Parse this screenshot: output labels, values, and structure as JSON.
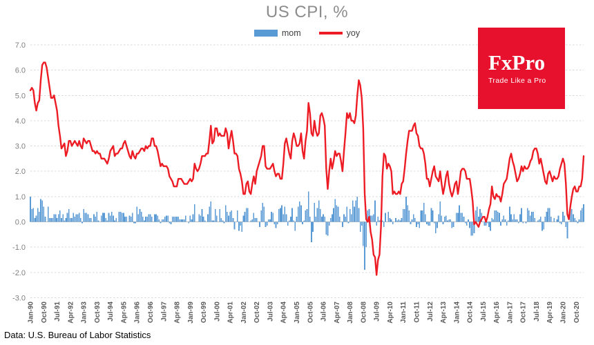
{
  "title": "US CPI, %",
  "legend": {
    "mom_label": "mom",
    "yoy_label": "yoy"
  },
  "logo": {
    "name": "FxPro",
    "tagline": "Trade Like a Pro",
    "bg_color": "#e8112d",
    "text_color": "#ffffff"
  },
  "footer": "Data: U.S. Bureau of Labor Statistics",
  "colors": {
    "mom_bar": "#5b9bd5",
    "yoy_line": "#ed1c24",
    "gridline": "#d9d9d9",
    "zero_axis": "#c0c0c0",
    "title_text": "#8c8c8c",
    "y_tick_text": "#7f7f7f",
    "x_tick_text": "#595959"
  },
  "chart_data": {
    "type": "bar+line combo",
    "title": "US CPI, %",
    "x_start": "Jan-1990",
    "x_end": "Mar-2021",
    "x_tick_every_months": 9,
    "x_tick_labels": [
      "Jan-90",
      "Oct-90",
      "Jul-91",
      "Apr-92",
      "Jan-93",
      "Oct-93",
      "Jul-94",
      "Apr-95",
      "Jan-96",
      "Oct-96",
      "Jul-97",
      "Apr-98",
      "Jan-99",
      "Oct-99",
      "Jul-00",
      "Apr-01",
      "Jan-02",
      "Oct-02",
      "Jul-03",
      "Apr-04",
      "Jan-05",
      "Oct-05",
      "Jul-06",
      "Apr-07",
      "Jan-08",
      "Oct-08",
      "Jul-09",
      "Apr-10",
      "Jan-11",
      "Oct-11",
      "Jul-12",
      "Apr-13",
      "Jan-14",
      "Oct-14",
      "Jul-15",
      "Apr-16",
      "Jan-17",
      "Oct-17",
      "Jul-18",
      "Apr-19",
      "Jan-20",
      "Oct-20"
    ],
    "y_tick_labels": [
      "7.0",
      "6.0",
      "5.0",
      "4.0",
      "3.0",
      "2.0",
      "1.0",
      "0.0",
      "-1.0",
      "-2.0",
      "-3.0"
    ],
    "ylim": [
      -3.0,
      7.0
    ],
    "grid": true,
    "legend_position": "top",
    "series": [
      {
        "name": "mom",
        "type": "bar",
        "values": [
          1.0,
          0.5,
          0.55,
          0.15,
          0.25,
          0.55,
          0.4,
          0.9,
          0.85,
          0.6,
          0.2,
          0.0,
          0.6,
          0.15,
          0.15,
          0.15,
          0.3,
          0.3,
          0.15,
          0.3,
          0.45,
          0.15,
          0.3,
          0.05,
          0.15,
          0.35,
          0.5,
          0.15,
          0.15,
          0.35,
          0.2,
          0.3,
          0.3,
          0.35,
          0.15,
          -0.05,
          0.5,
          0.35,
          0.35,
          0.3,
          0.15,
          0.15,
          0.0,
          0.3,
          0.2,
          0.4,
          0.05,
          0.0,
          0.25,
          0.35,
          0.35,
          0.15,
          0.05,
          0.35,
          0.25,
          0.4,
          0.25,
          0.05,
          0.15,
          0.0,
          0.4,
          0.4,
          0.35,
          0.35,
          0.2,
          0.2,
          0.0,
          0.25,
          0.2,
          0.35,
          -0.05,
          -0.05,
          0.6,
          0.3,
          0.5,
          0.4,
          0.2,
          0.05,
          0.2,
          0.2,
          0.3,
          0.3,
          0.2,
          0.0,
          0.3,
          0.3,
          0.25,
          0.1,
          -0.05,
          0.1,
          0.1,
          0.2,
          0.25,
          0.25,
          -0.05,
          -0.1,
          0.2,
          0.2,
          0.2,
          0.2,
          0.2,
          0.1,
          0.1,
          0.1,
          0.1,
          0.25,
          0.0,
          -0.05,
          0.25,
          0.1,
          0.3,
          0.7,
          0.0,
          0.0,
          0.3,
          0.25,
          0.5,
          0.2,
          0.05,
          0.0,
          0.3,
          0.6,
          0.8,
          0.05,
          0.05,
          0.5,
          0.25,
          0.0,
          0.5,
          0.15,
          0.05,
          -0.05,
          0.65,
          0.4,
          0.25,
          0.4,
          0.45,
          0.15,
          -0.3,
          0.0,
          0.45,
          -0.35,
          -0.15,
          -0.4,
          0.25,
          0.4,
          0.55,
          0.55,
          0.0,
          0.05,
          0.1,
          0.35,
          0.15,
          0.15,
          0.0,
          -0.2,
          0.45,
          0.75,
          0.6,
          -0.2,
          -0.15,
          0.1,
          0.1,
          0.4,
          0.35,
          -0.1,
          -0.25,
          -0.1,
          0.5,
          0.55,
          0.65,
          0.3,
          0.6,
          0.3,
          -0.15,
          0.05,
          0.2,
          0.55,
          0.05,
          -0.35,
          0.2,
          0.6,
          0.8,
          0.65,
          -0.1,
          0.05,
          0.45,
          0.5,
          1.2,
          0.2,
          -0.8,
          -0.4,
          0.75,
          0.2,
          0.55,
          0.85,
          0.5,
          0.2,
          0.3,
          0.2,
          -0.5,
          -0.55,
          -0.15,
          0.15,
          0.3,
          0.55,
          0.9,
          0.65,
          0.6,
          0.2,
          0.0,
          -0.2,
          0.3,
          0.2,
          0.6,
          -0.05,
          0.5,
          0.3,
          0.85,
          0.6,
          0.85,
          1.0,
          0.55,
          -0.4,
          -0.15,
          -0.95,
          -1.9,
          -1.0,
          0.45,
          0.5,
          0.25,
          0.25,
          0.3,
          0.85,
          -0.15,
          0.2,
          0.05,
          0.1,
          0.05,
          -0.2,
          0.35,
          0.0,
          0.4,
          0.15,
          0.1,
          -0.1,
          0.0,
          0.15,
          0.05,
          0.1,
          0.05,
          0.15,
          0.5,
          0.5,
          1.0,
          0.65,
          0.45,
          -0.1,
          0.1,
          0.3,
          0.15,
          -0.2,
          -0.1,
          -0.25,
          0.45,
          0.45,
          0.75,
          0.3,
          -0.1,
          -0.15,
          -0.15,
          0.55,
          0.45,
          -0.05,
          -0.45,
          -0.25,
          0.3,
          0.8,
          0.25,
          -0.1,
          0.2,
          0.25,
          0.05,
          0.1,
          0.1,
          -0.25,
          -0.2,
          0.0,
          0.35,
          0.35,
          0.65,
          0.35,
          0.35,
          0.2,
          -0.05,
          -0.15,
          0.1,
          -0.25,
          -0.55,
          -0.55,
          -0.45,
          0.45,
          0.6,
          0.2,
          0.5,
          0.35,
          0.0,
          -0.15,
          -0.15,
          -0.05,
          -0.2,
          -0.35,
          0.15,
          0.1,
          0.45,
          0.45,
          0.4,
          0.35,
          -0.15,
          0.1,
          0.25,
          0.1,
          -0.15,
          0.05,
          0.6,
          0.3,
          0.1,
          0.3,
          0.1,
          0.1,
          -0.05,
          0.3,
          0.55,
          -0.05,
          0.0,
          -0.05,
          0.55,
          0.45,
          0.25,
          0.4,
          0.4,
          0.15,
          0.0,
          0.05,
          0.1,
          0.2,
          -0.35,
          -0.3,
          0.2,
          0.4,
          0.55,
          0.55,
          0.2,
          0.0,
          0.15,
          0.0,
          0.1,
          0.25,
          -0.05,
          -0.1,
          0.4,
          0.25,
          -0.2,
          -0.65,
          0.0,
          0.55,
          0.5,
          0.3,
          0.15,
          0.05,
          -0.05,
          0.1,
          0.45,
          0.55,
          0.7
        ]
      },
      {
        "name": "yoy",
        "type": "line",
        "values": [
          5.2,
          5.3,
          5.2,
          4.7,
          4.4,
          4.7,
          4.8,
          5.6,
          6.2,
          6.3,
          6.3,
          6.1,
          5.7,
          5.3,
          4.9,
          4.9,
          5.0,
          4.7,
          4.4,
          3.8,
          3.4,
          2.9,
          3.0,
          3.1,
          2.6,
          2.8,
          3.2,
          3.2,
          3.0,
          3.1,
          3.2,
          3.1,
          3.0,
          3.2,
          3.0,
          2.9,
          3.3,
          3.2,
          3.1,
          3.2,
          3.2,
          3.0,
          2.8,
          2.8,
          2.7,
          2.8,
          2.7,
          2.7,
          2.5,
          2.5,
          2.5,
          2.4,
          2.3,
          2.5,
          2.8,
          2.9,
          3.0,
          2.6,
          2.7,
          2.7,
          2.8,
          2.9,
          2.9,
          3.1,
          3.2,
          3.0,
          2.8,
          2.6,
          2.5,
          2.8,
          2.6,
          2.5,
          2.7,
          2.7,
          2.8,
          2.9,
          2.9,
          2.8,
          3.0,
          2.9,
          3.0,
          3.0,
          3.3,
          3.3,
          3.0,
          3.0,
          2.8,
          2.5,
          2.2,
          2.3,
          2.2,
          2.2,
          2.2,
          2.1,
          1.8,
          1.7,
          1.6,
          1.4,
          1.4,
          1.4,
          1.7,
          1.7,
          1.7,
          1.6,
          1.5,
          1.5,
          1.5,
          1.6,
          1.7,
          1.6,
          1.7,
          2.3,
          2.1,
          2.0,
          2.1,
          2.3,
          2.6,
          2.6,
          2.6,
          2.7,
          2.7,
          3.2,
          3.8,
          3.1,
          3.2,
          3.7,
          3.7,
          3.4,
          3.5,
          3.4,
          3.4,
          3.4,
          3.7,
          3.5,
          2.9,
          3.3,
          3.6,
          3.2,
          2.7,
          2.7,
          2.6,
          2.1,
          1.9,
          1.6,
          1.1,
          1.1,
          1.5,
          1.6,
          1.2,
          1.1,
          1.5,
          1.8,
          1.5,
          2.0,
          2.2,
          2.4,
          2.6,
          3.0,
          3.0,
          2.2,
          2.1,
          2.1,
          2.1,
          2.2,
          2.3,
          2.0,
          1.8,
          1.9,
          1.9,
          1.7,
          1.7,
          2.3,
          3.1,
          3.3,
          3.0,
          2.7,
          2.5,
          3.2,
          3.5,
          3.3,
          3.0,
          3.0,
          3.1,
          3.5,
          2.8,
          2.5,
          3.2,
          3.6,
          4.7,
          4.3,
          3.5,
          3.4,
          4.0,
          3.6,
          3.4,
          3.5,
          4.2,
          4.3,
          4.1,
          3.8,
          2.1,
          1.3,
          2.0,
          2.5,
          2.1,
          2.4,
          2.8,
          2.6,
          2.7,
          2.7,
          2.4,
          2.0,
          2.8,
          3.5,
          4.3,
          4.1,
          4.3,
          4.0,
          4.0,
          3.9,
          4.2,
          5.0,
          5.6,
          5.4,
          4.9,
          3.7,
          1.1,
          0.1,
          0.0,
          0.2,
          -0.4,
          -0.7,
          -1.3,
          -1.4,
          -2.1,
          -1.5,
          -1.3,
          -0.2,
          1.8,
          2.7,
          2.6,
          2.1,
          2.3,
          2.2,
          2.0,
          1.1,
          1.2,
          1.1,
          1.1,
          1.2,
          1.1,
          1.5,
          1.6,
          2.1,
          2.7,
          3.2,
          3.6,
          3.6,
          3.6,
          3.8,
          3.9,
          3.5,
          3.4,
          3.0,
          2.9,
          2.9,
          2.7,
          2.3,
          1.7,
          1.7,
          1.4,
          1.7,
          2.0,
          2.2,
          1.8,
          1.7,
          1.6,
          2.0,
          1.5,
          1.1,
          1.4,
          1.8,
          2.0,
          1.5,
          1.2,
          1.0,
          1.2,
          1.5,
          1.6,
          1.1,
          1.5,
          2.0,
          2.1,
          2.1,
          2.0,
          1.7,
          1.7,
          1.7,
          1.3,
          0.8,
          -0.1,
          0.0,
          -0.1,
          -0.2,
          0.0,
          0.1,
          0.2,
          0.2,
          0.0,
          0.2,
          0.5,
          0.7,
          1.4,
          1.0,
          0.9,
          1.1,
          1.0,
          1.0,
          0.8,
          1.1,
          1.5,
          1.6,
          1.7,
          2.1,
          2.5,
          2.7,
          2.4,
          2.2,
          1.9,
          1.6,
          1.7,
          1.9,
          2.2,
          2.0,
          2.2,
          2.1,
          2.1,
          2.2,
          2.4,
          2.5,
          2.8,
          2.9,
          2.9,
          2.7,
          2.3,
          2.5,
          2.2,
          1.9,
          1.6,
          1.5,
          1.9,
          2.0,
          1.8,
          1.6,
          1.8,
          1.7,
          1.7,
          1.8,
          2.1,
          2.3,
          2.5,
          2.3,
          1.5,
          0.3,
          0.1,
          0.6,
          1.0,
          1.3,
          1.4,
          1.2,
          1.2,
          1.4,
          1.4,
          1.7,
          2.6
        ]
      }
    ]
  }
}
